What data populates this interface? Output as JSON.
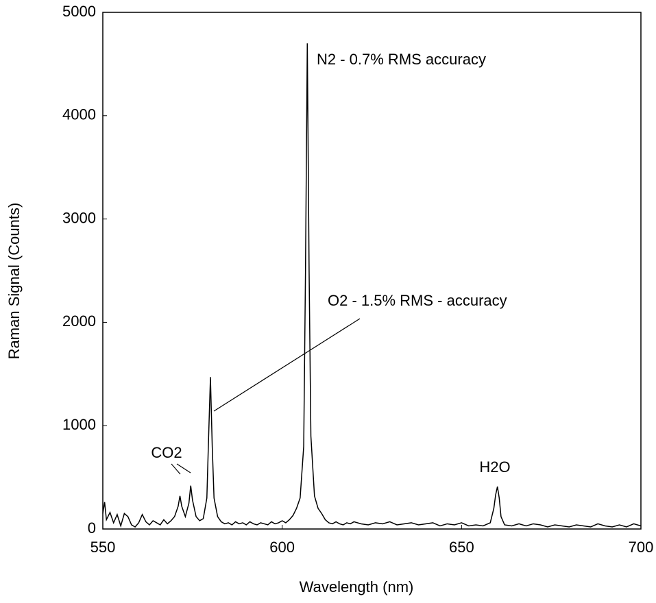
{
  "chart_data": {
    "type": "line",
    "x_label": "Wavelength (nm)",
    "y_label": "Raman Signal (Counts)",
    "annotations": [
      "N2 - 0.7% RMS accuracy",
      "O2 - 1.5% RMS - accuracy",
      "CO2",
      "H2O"
    ],
    "color": "#000000",
    "x": [
      550,
      550.5,
      551,
      552,
      553,
      554,
      555,
      556,
      557,
      558,
      559,
      560,
      561,
      562,
      563,
      564,
      565,
      566,
      567,
      568,
      569,
      570,
      571,
      571.5,
      572,
      573,
      574,
      574.5,
      575,
      576,
      577,
      578,
      579,
      579.5,
      580,
      580.5,
      581,
      582,
      583,
      584,
      585,
      586,
      587,
      588,
      589,
      590,
      591,
      592,
      593,
      594,
      595,
      596,
      597,
      598,
      599,
      600,
      601,
      602,
      603,
      604,
      605,
      606,
      606.5,
      607,
      607.5,
      608,
      609,
      610,
      611,
      612,
      613,
      614,
      615,
      616,
      617,
      618,
      619,
      620,
      622,
      624,
      626,
      628,
      630,
      632,
      634,
      636,
      638,
      640,
      642,
      644,
      646,
      648,
      650,
      652,
      654,
      656,
      658,
      659,
      659.5,
      660,
      660.5,
      661,
      662,
      664,
      666,
      668,
      670,
      672,
      674,
      676,
      678,
      680,
      682,
      684,
      686,
      688,
      690,
      692,
      694,
      696,
      698,
      700
    ],
    "values": [
      150,
      260,
      90,
      160,
      60,
      140,
      30,
      150,
      120,
      40,
      20,
      60,
      140,
      70,
      40,
      80,
      60,
      40,
      90,
      50,
      80,
      120,
      220,
      320,
      220,
      120,
      250,
      420,
      280,
      120,
      80,
      100,
      300,
      900,
      1470,
      800,
      300,
      120,
      70,
      50,
      60,
      40,
      70,
      50,
      60,
      40,
      70,
      50,
      40,
      60,
      50,
      40,
      70,
      50,
      60,
      80,
      60,
      90,
      130,
      200,
      300,
      800,
      2500,
      4700,
      2500,
      900,
      320,
      200,
      150,
      90,
      60,
      50,
      70,
      50,
      40,
      60,
      50,
      70,
      50,
      40,
      60,
      50,
      70,
      40,
      50,
      60,
      40,
      50,
      60,
      30,
      50,
      40,
      60,
      30,
      40,
      30,
      60,
      200,
      330,
      410,
      300,
      120,
      40,
      30,
      50,
      30,
      50,
      40,
      20,
      40,
      30,
      20,
      40,
      30,
      20,
      50,
      30,
      20,
      40,
      20,
      50,
      30
    ],
    "xlim": [
      550,
      700
    ],
    "ylim": [
      0,
      5000
    ],
    "xticks": [
      550,
      600,
      650,
      700
    ],
    "yticks": [
      0,
      1000,
      2000,
      3000,
      4000,
      5000
    ],
    "grid": false
  }
}
